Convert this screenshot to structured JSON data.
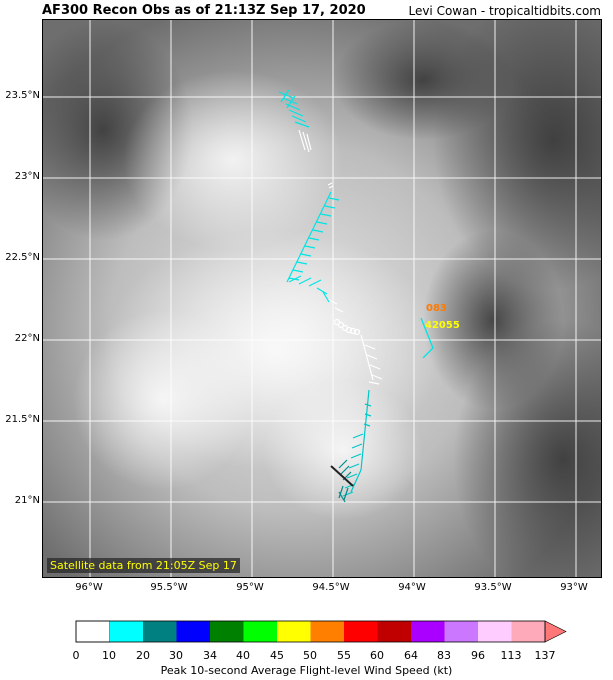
{
  "header": {
    "title": "AF300 Recon Obs as of 21:13Z Sep 17, 2020",
    "credit": "Levi Cowan - tropicaltidbits.com"
  },
  "map": {
    "lat_labels": [
      "23.5°N",
      "23°N",
      "22.5°N",
      "22°N",
      "21.5°N",
      "21°N"
    ],
    "lon_labels": [
      "96°W",
      "95.5°W",
      "95°W",
      "94.5°W",
      "94°W",
      "93.5°W",
      "93°W"
    ],
    "satellite_note": "Satellite data from 21:05Z Sep 17",
    "stations": [
      {
        "id": "083",
        "color": "#ff7a00"
      },
      {
        "id": "42055",
        "color": "#ffff00"
      }
    ]
  },
  "colorbar": {
    "title": "Peak 10-second Average Flight-level Wind Speed (kt)",
    "tick_labels": [
      "0",
      "10",
      "20",
      "30",
      "34",
      "40",
      "45",
      "50",
      "55",
      "60",
      "64",
      "83",
      "96",
      "113",
      "137"
    ],
    "colors": [
      "#ffffff",
      "#00ffff",
      "#008080",
      "#0000ff",
      "#008000",
      "#00ff00",
      "#ffff00",
      "#ff8000",
      "#ff0000",
      "#c00000",
      "#aa00ff",
      "#cc77ff",
      "#ffccff",
      "#ffaabb",
      "#ff7777"
    ]
  }
}
